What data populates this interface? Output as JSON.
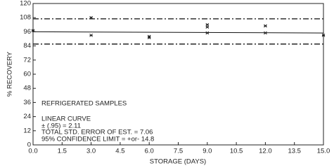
{
  "chart_data": {
    "type": "scatter",
    "xlabel": "STORAGE (DAYS)",
    "ylabel": "% RECOVERY",
    "x": [
      0,
      3,
      3,
      6,
      6,
      9,
      9,
      9,
      12,
      12,
      15
    ],
    "values": [
      97,
      108,
      93,
      92,
      91,
      102,
      100,
      95,
      101,
      95,
      93
    ],
    "color": "#222222",
    "lines": [
      {
        "x": [
          0,
          15
        ],
        "values": [
          96,
          95
        ],
        "style": "solid",
        "color": "#111111"
      },
      {
        "x": [
          0,
          15
        ],
        "values": [
          107,
          107
        ],
        "style": "dashdot",
        "color": "#333333"
      },
      {
        "x": [
          0,
          15
        ],
        "values": [
          85.6,
          85.6
        ],
        "style": "dashdot",
        "color": "#111111"
      }
    ],
    "annotations": [
      "REFRIGERATED SAMPLES",
      "LINEAR CURVE",
      "± (.95) = 2.11",
      "TOTAL STD. ERROR OF EST. = 7.06",
      "95% CONFIDENCE LIMIT = +or- 14.8"
    ],
    "xlim": [
      0,
      15
    ],
    "xticks": [
      {
        "value": 0,
        "label": "0.0"
      },
      1.5,
      {
        "value": 3,
        "label": "3.0"
      },
      4.5,
      {
        "value": 6,
        "label": "6.0"
      },
      7.5,
      {
        "value": 9,
        "label": "9.0"
      },
      10.5,
      {
        "value": 12,
        "label": "12.0"
      },
      13.5,
      {
        "value": 15,
        "label": "15.0"
      }
    ],
    "ylim": [
      0,
      120
    ],
    "yticks": [
      0,
      12,
      24,
      36,
      48,
      60,
      72,
      84,
      96,
      108,
      120
    ]
  }
}
